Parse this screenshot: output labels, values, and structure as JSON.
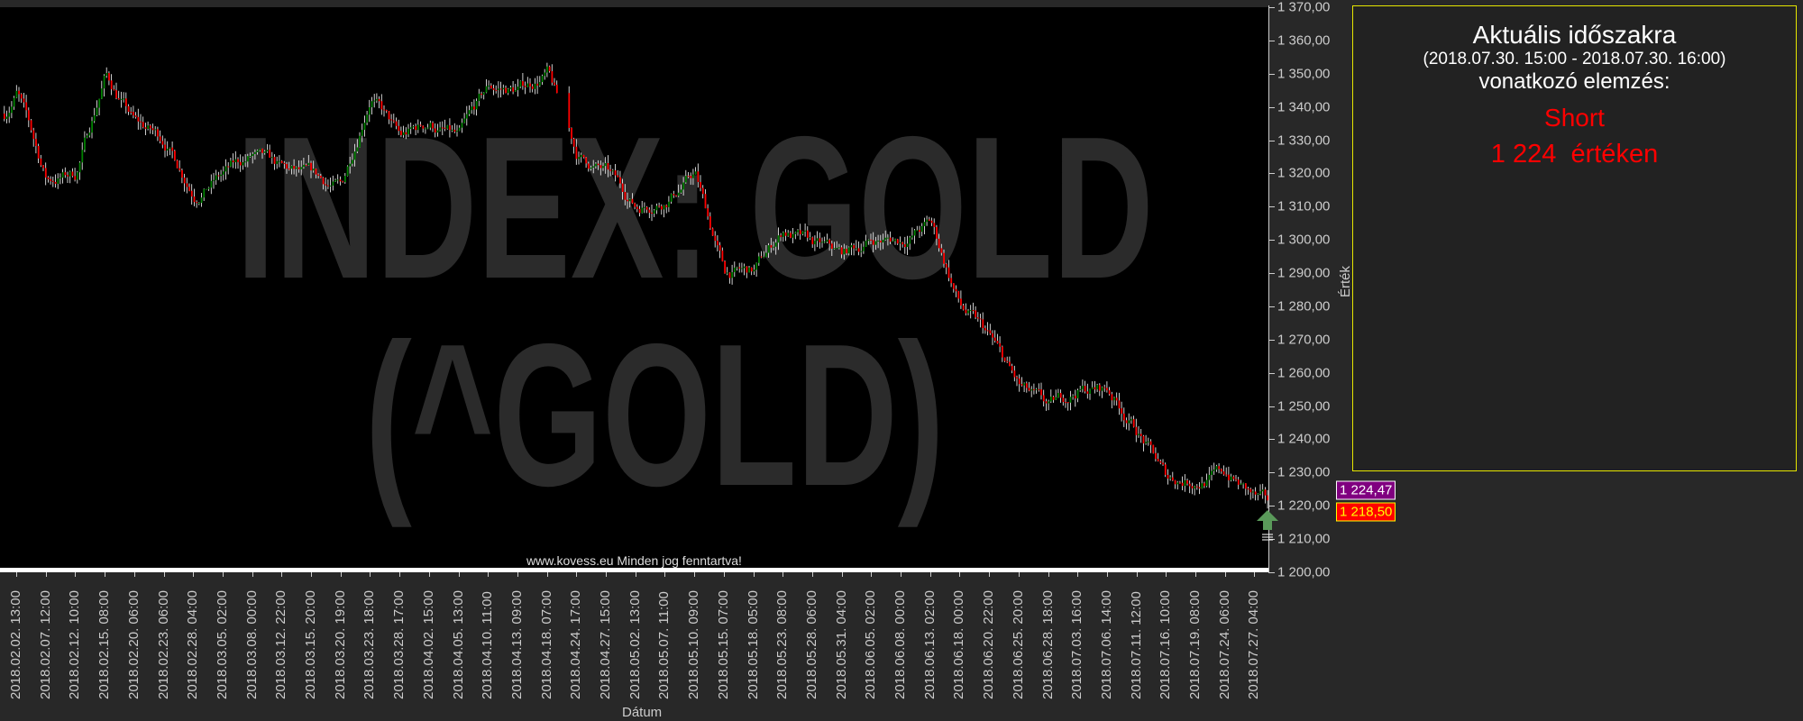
{
  "chart_data": {
    "type": "candlestick",
    "watermark": [
      "INDEX: GOLD",
      "(^GOLD)"
    ],
    "footer": "www.kovess.eu Minden jog fenntartva!",
    "xlabel": "Dátum",
    "ylabel": "Érték",
    "ylim": [
      1200,
      1370
    ],
    "yticks": [
      "1 200,00",
      "1 210,00",
      "1 220,00",
      "1 230,00",
      "1 240,00",
      "1 250,00",
      "1 260,00",
      "1 270,00",
      "1 280,00",
      "1 290,00",
      "1 300,00",
      "1 310,00",
      "1 320,00",
      "1 330,00",
      "1 340,00",
      "1 350,00",
      "1 360,00",
      "1 370,00"
    ],
    "ytick_values": [
      1200,
      1210,
      1220,
      1230,
      1240,
      1250,
      1260,
      1270,
      1280,
      1290,
      1300,
      1310,
      1320,
      1330,
      1340,
      1350,
      1360,
      1370
    ],
    "xticks": [
      "2018.02.02. 13:00",
      "2018.02.07. 12:00",
      "2018.02.12. 10:00",
      "2018.02.15. 08:00",
      "2018.02.20. 06:00",
      "2018.02.23. 06:00",
      "2018.02.28. 04:00",
      "2018.03.05. 02:00",
      "2018.03.08. 00:00",
      "2018.03.12. 22:00",
      "2018.03.15. 20:00",
      "2018.03.20. 19:00",
      "2018.03.23. 18:00",
      "2018.03.28. 17:00",
      "2018.04.02. 15:00",
      "2018.04.05. 13:00",
      "2018.04.10. 11:00",
      "2018.04.13. 09:00",
      "2018.04.18. 07:00",
      "2018.04.24. 17:00",
      "2018.04.27. 15:00",
      "2018.05.02. 13:00",
      "2018.05.07. 11:00",
      "2018.05.10. 09:00",
      "2018.05.15. 07:00",
      "2018.05.18. 05:00",
      "2018.05.23. 08:00",
      "2018.05.28. 06:00",
      "2018.05.31. 04:00",
      "2018.06.05. 02:00",
      "2018.06.08. 00:00",
      "2018.06.13. 02:00",
      "2018.06.18. 00:00",
      "2018.06.20. 22:00",
      "2018.06.25. 20:00",
      "2018.06.28. 18:00",
      "2018.07.03. 16:00",
      "2018.07.06. 14:00",
      "2018.07.11. 12:00",
      "2018.07.16. 10:00",
      "2018.07.19. 08:00",
      "2018.07.24. 06:00",
      "2018.07.27. 04:00"
    ],
    "approx_close_at_xticks": [
      1345,
      1318,
      1320,
      1350,
      1335,
      1330,
      1315,
      1320,
      1325,
      1320,
      1318,
      1315,
      1345,
      1330,
      1335,
      1330,
      1345,
      1345,
      1350,
      1325,
      1320,
      1310,
      1313,
      1320,
      1290,
      1290,
      1303,
      1298,
      1295,
      1300,
      1300,
      1305,
      1280,
      1270,
      1255,
      1248,
      1255,
      1255,
      1243,
      1228,
      1228,
      1230,
      1222
    ],
    "last_close": 1218.5,
    "price_tags": [
      {
        "label": "1 224,47",
        "value": 1224.47,
        "color": "#800080"
      },
      {
        "label": "1 218,50",
        "value": 1218.5,
        "color": "#ff0000"
      }
    ],
    "colors": {
      "up": "#008000",
      "down": "#ff0000",
      "wick": "#ffffff",
      "background": "#000000"
    },
    "signal_icon": "green-up-arrow"
  },
  "panel": {
    "title": "Aktuális időszakra",
    "range": "(2018.07.30. 15:00 - 2018.07.30. 16:00)",
    "subtitle": "vonatkozó elemzés:",
    "direction": "Short",
    "value_text": "1 224  értéken",
    "border_color": "#e6e600",
    "signal_color": "#ff0000"
  }
}
